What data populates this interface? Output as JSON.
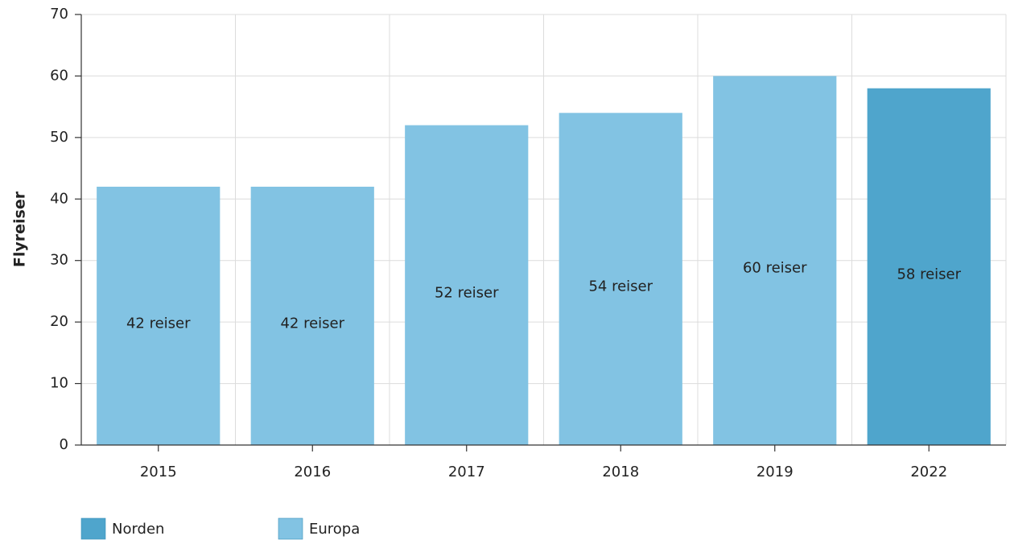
{
  "chart_data": {
    "type": "bar",
    "y_label": "Flyreiser",
    "categories": [
      "2015",
      "2016",
      "2017",
      "2018",
      "2019",
      "2022"
    ],
    "series": [
      {
        "name": "Norden",
        "color": "#4fa5cc",
        "values": [
          null,
          null,
          null,
          null,
          null,
          58
        ],
        "value_labels": [
          null,
          null,
          null,
          null,
          null,
          "58 reiser"
        ]
      },
      {
        "name": "Europa",
        "color": "#82c3e3",
        "values": [
          42,
          42,
          52,
          54,
          60,
          null
        ],
        "value_labels": [
          "42 reiser",
          "42 reiser",
          "52 reiser",
          "54 reiser",
          "60 reiser",
          null
        ]
      }
    ],
    "ylim": [
      0,
      70
    ],
    "yticks": [
      0,
      10,
      20,
      30,
      40,
      50,
      60,
      70
    ],
    "grid": true
  }
}
